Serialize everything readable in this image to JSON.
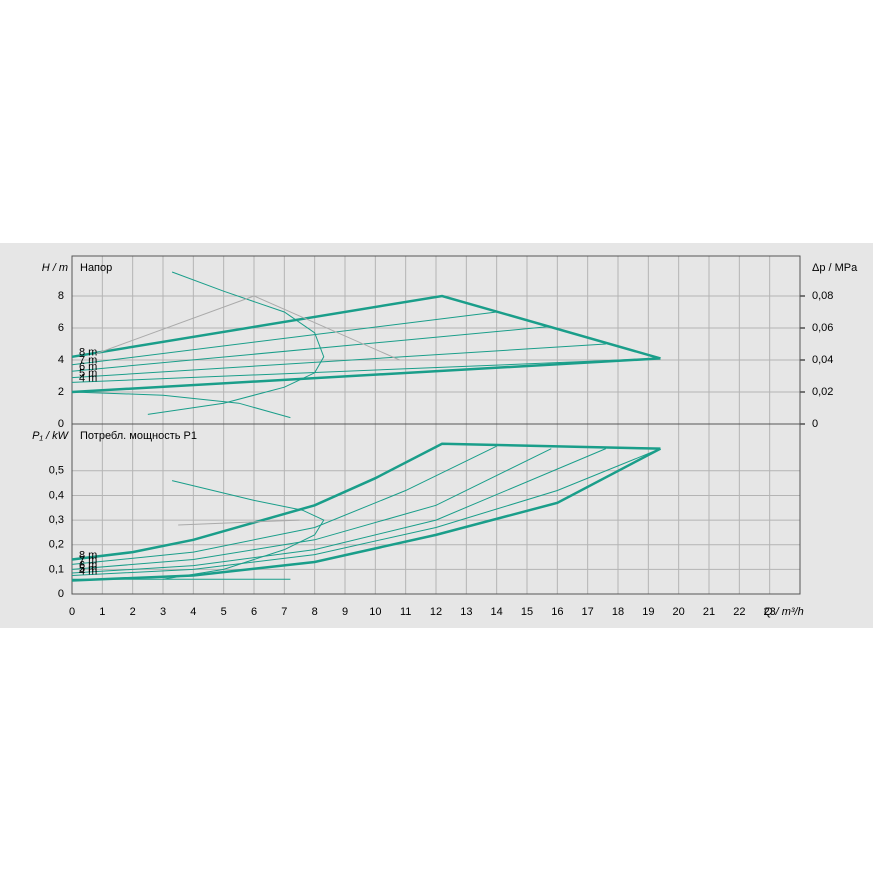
{
  "chart_data": [
    {
      "type": "line",
      "title": "Напор",
      "ylabel": "H / m",
      "y2label": "Δp / MPa",
      "xlim": [
        0,
        24
      ],
      "xticks": [
        0,
        1,
        2,
        3,
        4,
        5,
        6,
        7,
        8,
        9,
        10,
        11,
        12,
        13,
        14,
        15,
        16,
        17,
        18,
        19,
        20,
        21,
        22,
        23
      ],
      "ylim": [
        0,
        10.5
      ],
      "yticks": [
        0,
        2,
        4,
        6,
        8
      ],
      "y2lim": [
        0,
        0.105
      ],
      "y2ticks": [
        0,
        {
          "value": 0.02,
          "label": "0,02"
        },
        {
          "value": 0.04,
          "label": "0,04"
        },
        {
          "value": 0.06,
          "label": "0,06"
        },
        {
          "value": 0.08,
          "label": "0,08"
        }
      ],
      "grid": true,
      "series": [
        {
          "name": "8 m",
          "color": "#1a9e8a",
          "width": 2.5,
          "x": [
            0,
            12.2,
            19.4
          ],
          "values": [
            4.2,
            8,
            4.1
          ]
        },
        {
          "name": "7 m",
          "color": "#1a9e8a",
          "width": 1,
          "x": [
            0,
            14
          ],
          "values": [
            3.7,
            7
          ]
        },
        {
          "name": "6 m",
          "color": "#1a9e8a",
          "width": 1,
          "x": [
            0,
            15.8
          ],
          "values": [
            3.3,
            6.1
          ]
        },
        {
          "name": "5 m",
          "color": "#1a9e8a",
          "width": 1,
          "x": [
            0,
            17.6
          ],
          "values": [
            2.9,
            5
          ]
        },
        {
          "name": "4 m",
          "color": "#1a9e8a",
          "width": 1,
          "x": [
            0,
            19.4
          ],
          "values": [
            2.6,
            4.1
          ]
        },
        {
          "color": "#1a9e8a",
          "width": 2.5,
          "x": [
            0,
            19.4
          ],
          "values": [
            2,
            4.1
          ]
        },
        {
          "color": "#1a9e8a",
          "width": 1,
          "x": [
            3.3,
            5,
            7,
            8,
            8.3,
            8,
            7,
            5,
            2.5
          ],
          "values": [
            9.5,
            8.3,
            7,
            5.7,
            4.2,
            3.2,
            2.3,
            1.3,
            0.6
          ]
        },
        {
          "color": "#1a9e8a",
          "width": 1,
          "x": [
            0,
            3,
            5.5,
            7.2
          ],
          "values": [
            2,
            1.8,
            1.3,
            0.4
          ]
        },
        {
          "color": "#aaaaaa",
          "width": 1,
          "x": [
            0.8,
            6
          ],
          "values": [
            4.4,
            8
          ]
        },
        {
          "color": "#aaaaaa",
          "width": 1,
          "x": [
            6,
            10.8
          ],
          "values": [
            8,
            4
          ]
        }
      ]
    },
    {
      "type": "line",
      "title": "Потребл. мощность P1",
      "ylabel": "P₁ / kW",
      "xlabel": "Q / m³/h",
      "xlim": [
        0,
        24
      ],
      "xticks": [
        0,
        1,
        2,
        3,
        4,
        5,
        6,
        7,
        8,
        9,
        10,
        11,
        12,
        13,
        14,
        15,
        16,
        17,
        18,
        19,
        20,
        21,
        22,
        23
      ],
      "ylim": [
        0,
        0.69
      ],
      "yticks": [
        0,
        {
          "value": 0.1,
          "label": "0,1"
        },
        {
          "value": 0.2,
          "label": "0,2"
        },
        {
          "value": 0.3,
          "label": "0,3"
        },
        {
          "value": 0.4,
          "label": "0,4"
        },
        {
          "value": 0.5,
          "label": "0,5"
        }
      ],
      "grid": true,
      "series": [
        {
          "name": "8 m",
          "color": "#1a9e8a",
          "width": 2.5,
          "x": [
            0,
            2,
            4,
            6,
            8,
            10,
            12.2,
            19.4
          ],
          "values": [
            0.14,
            0.17,
            0.22,
            0.29,
            0.36,
            0.47,
            0.61,
            0.59
          ]
        },
        {
          "name": "7 m",
          "color": "#1a9e8a",
          "width": 1,
          "x": [
            0,
            4,
            8,
            11,
            14
          ],
          "values": [
            0.12,
            0.17,
            0.27,
            0.42,
            0.6
          ]
        },
        {
          "name": "6 m",
          "color": "#1a9e8a",
          "width": 1,
          "x": [
            0,
            4,
            8,
            12,
            15.8
          ],
          "values": [
            0.1,
            0.14,
            0.22,
            0.36,
            0.59
          ]
        },
        {
          "name": "5 m",
          "color": "#1a9e8a",
          "width": 1,
          "x": [
            0,
            4,
            8,
            12,
            17.6
          ],
          "values": [
            0.085,
            0.115,
            0.18,
            0.3,
            0.59
          ]
        },
        {
          "name": "4 m",
          "color": "#1a9e8a",
          "width": 1,
          "x": [
            0,
            4,
            8,
            12,
            16,
            19.4
          ],
          "values": [
            0.075,
            0.1,
            0.16,
            0.27,
            0.42,
            0.59
          ]
        },
        {
          "color": "#1a9e8a",
          "width": 2.5,
          "x": [
            0,
            4,
            8,
            12,
            16,
            19.4
          ],
          "values": [
            0.055,
            0.075,
            0.13,
            0.24,
            0.37,
            0.59
          ]
        },
        {
          "color": "#1a9e8a",
          "width": 1,
          "x": [
            3.3,
            6,
            7.6,
            8.3,
            8,
            7,
            5,
            3
          ],
          "values": [
            0.46,
            0.38,
            0.34,
            0.3,
            0.24,
            0.18,
            0.1,
            0.06
          ]
        },
        {
          "color": "#1a9e8a",
          "width": 1,
          "x": [
            0,
            7.2
          ],
          "values": [
            0.06,
            0.06
          ]
        },
        {
          "color": "#aaaaaa",
          "width": 1,
          "x": [
            3.5,
            7.5
          ],
          "values": [
            0.28,
            0.3
          ]
        }
      ]
    }
  ]
}
